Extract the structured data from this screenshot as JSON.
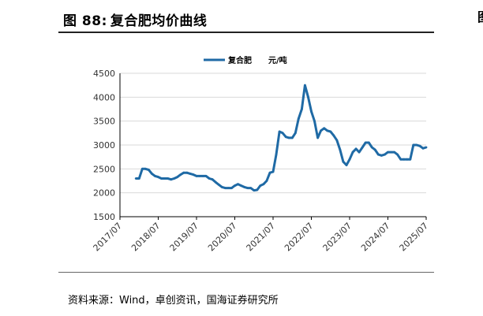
{
  "figure": {
    "label": "图 88:",
    "title": "复合肥均价曲线",
    "source": "资料来源：Wind，卓创资讯，国海证券研究所"
  },
  "chart_data": {
    "type": "line",
    "title": "",
    "xlabel": "",
    "ylabel": "",
    "ylim": [
      1500,
      4500
    ],
    "yticks": [
      "4500",
      "4000",
      "3500",
      "3000",
      "2500",
      "2000",
      "1500"
    ],
    "xticks": [
      "2017/07",
      "2018/07",
      "2019/07",
      "2020/07",
      "2021/07",
      "2022/07",
      "2023/07",
      "2024/07",
      "2025/07"
    ],
    "grid": true,
    "legend_position": "top-center",
    "series": [
      {
        "name": "复合肥",
        "unit": "元/吨",
        "color": "#1f6aa5",
        "points": [
          [
            "2017-12",
            2300
          ],
          [
            "2018-01",
            2300
          ],
          [
            "2018-02",
            2500
          ],
          [
            "2018-03",
            2500
          ],
          [
            "2018-04",
            2480
          ],
          [
            "2018-05",
            2400
          ],
          [
            "2018-06",
            2350
          ],
          [
            "2018-07",
            2330
          ],
          [
            "2018-08",
            2300
          ],
          [
            "2018-09",
            2300
          ],
          [
            "2018-10",
            2300
          ],
          [
            "2018-11",
            2280
          ],
          [
            "2018-12",
            2300
          ],
          [
            "2019-01",
            2330
          ],
          [
            "2019-02",
            2380
          ],
          [
            "2019-03",
            2420
          ],
          [
            "2019-04",
            2420
          ],
          [
            "2019-05",
            2400
          ],
          [
            "2019-06",
            2380
          ],
          [
            "2019-07",
            2350
          ],
          [
            "2019-08",
            2350
          ],
          [
            "2019-09",
            2350
          ],
          [
            "2019-10",
            2350
          ],
          [
            "2019-11",
            2300
          ],
          [
            "2019-12",
            2280
          ],
          [
            "2020-01",
            2220
          ],
          [
            "2020-02",
            2170
          ],
          [
            "2020-03",
            2120
          ],
          [
            "2020-04",
            2100
          ],
          [
            "2020-05",
            2100
          ],
          [
            "2020-06",
            2100
          ],
          [
            "2020-07",
            2150
          ],
          [
            "2020-08",
            2180
          ],
          [
            "2020-09",
            2150
          ],
          [
            "2020-10",
            2120
          ],
          [
            "2020-11",
            2100
          ],
          [
            "2020-12",
            2100
          ],
          [
            "2021-01",
            2050
          ],
          [
            "2021-02",
            2060
          ],
          [
            "2021-03",
            2150
          ],
          [
            "2021-04",
            2180
          ],
          [
            "2021-05",
            2250
          ],
          [
            "2021-06",
            2420
          ],
          [
            "2021-07",
            2440
          ],
          [
            "2021-08",
            2800
          ],
          [
            "2021-09",
            3280
          ],
          [
            "2021-10",
            3250
          ],
          [
            "2021-11",
            3170
          ],
          [
            "2021-12",
            3150
          ],
          [
            "2022-01",
            3150
          ],
          [
            "2022-02",
            3250
          ],
          [
            "2022-03",
            3550
          ],
          [
            "2022-04",
            3750
          ],
          [
            "2022-05",
            4250
          ],
          [
            "2022-06",
            4000
          ],
          [
            "2022-07",
            3700
          ],
          [
            "2022-08",
            3500
          ],
          [
            "2022-09",
            3150
          ],
          [
            "2022-10",
            3300
          ],
          [
            "2022-11",
            3350
          ],
          [
            "2022-12",
            3300
          ],
          [
            "2023-01",
            3280
          ],
          [
            "2023-02",
            3200
          ],
          [
            "2023-03",
            3100
          ],
          [
            "2023-04",
            2900
          ],
          [
            "2023-05",
            2650
          ],
          [
            "2023-06",
            2580
          ],
          [
            "2023-07",
            2700
          ],
          [
            "2023-08",
            2850
          ],
          [
            "2023-09",
            2920
          ],
          [
            "2023-10",
            2850
          ],
          [
            "2023-11",
            2950
          ],
          [
            "2023-12",
            3050
          ],
          [
            "2024-01",
            3050
          ],
          [
            "2024-02",
            2950
          ],
          [
            "2024-03",
            2900
          ],
          [
            "2024-04",
            2800
          ],
          [
            "2024-05",
            2780
          ],
          [
            "2024-06",
            2800
          ],
          [
            "2024-07",
            2850
          ],
          [
            "2024-08",
            2850
          ],
          [
            "2024-09",
            2850
          ],
          [
            "2024-10",
            2800
          ],
          [
            "2024-11",
            2700
          ],
          [
            "2024-12",
            2700
          ],
          [
            "2025-01",
            2700
          ],
          [
            "2025-02",
            2700
          ],
          [
            "2025-03",
            3000
          ],
          [
            "2025-04",
            3000
          ],
          [
            "2025-05",
            2980
          ],
          [
            "2025-06",
            2930
          ],
          [
            "2025-07",
            2950
          ]
        ]
      }
    ]
  }
}
